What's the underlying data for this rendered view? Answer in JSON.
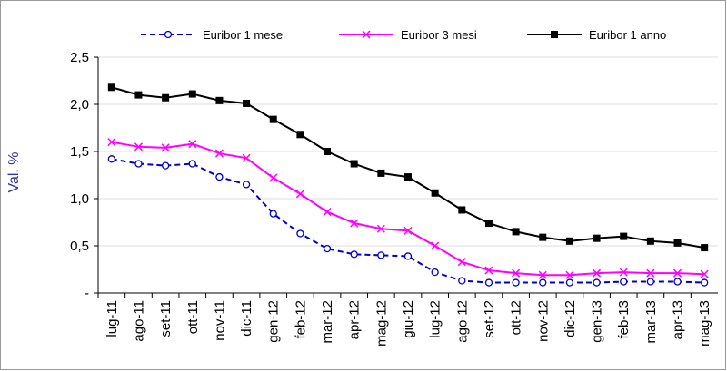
{
  "chart_data": {
    "type": "line",
    "y_label": "Val. %",
    "categories": [
      "lug-11",
      "ago-11",
      "set-11",
      "ott-11",
      "nov-11",
      "dic-11",
      "gen-12",
      "feb-12",
      "mar-12",
      "apr-12",
      "mag-12",
      "giu-12",
      "lug-12",
      "ago-12",
      "set-12",
      "ott-12",
      "nov-12",
      "dic-12",
      "gen-13",
      "feb-13",
      "mar-13",
      "apr-13",
      "mag-13"
    ],
    "series": [
      {
        "name": "Euribor 1 mese",
        "color": "#0000cc",
        "marker": "circle",
        "dashed": true,
        "values": [
          1.42,
          1.37,
          1.35,
          1.37,
          1.23,
          1.15,
          0.84,
          0.63,
          0.47,
          0.41,
          0.4,
          0.39,
          0.22,
          0.13,
          0.11,
          0.11,
          0.11,
          0.11,
          0.11,
          0.12,
          0.12,
          0.12,
          0.11
        ]
      },
      {
        "name": "Euribor 3 mesi",
        "color": "#ff00ff",
        "marker": "x",
        "dashed": false,
        "values": [
          1.6,
          1.55,
          1.54,
          1.58,
          1.48,
          1.43,
          1.22,
          1.05,
          0.86,
          0.74,
          0.68,
          0.66,
          0.5,
          0.33,
          0.24,
          0.21,
          0.19,
          0.19,
          0.21,
          0.22,
          0.21,
          0.21,
          0.2
        ]
      },
      {
        "name": "Euribor 1 anno",
        "color": "#000000",
        "marker": "square",
        "dashed": false,
        "values": [
          2.18,
          2.1,
          2.07,
          2.11,
          2.04,
          2.01,
          1.84,
          1.68,
          1.5,
          1.37,
          1.27,
          1.23,
          1.06,
          0.88,
          0.74,
          0.65,
          0.59,
          0.55,
          0.58,
          0.6,
          0.55,
          0.53,
          0.48
        ]
      }
    ],
    "ylim": [
      0,
      2.5
    ],
    "yticks": [
      {
        "value": 0,
        "label": "-"
      },
      {
        "value": 0.5,
        "label": "0,5"
      },
      {
        "value": 1.0,
        "label": "1,0"
      },
      {
        "value": 1.5,
        "label": "1,5"
      },
      {
        "value": 2.0,
        "label": "2,0"
      },
      {
        "value": 2.5,
        "label": "2,5"
      }
    ],
    "grid": true
  }
}
